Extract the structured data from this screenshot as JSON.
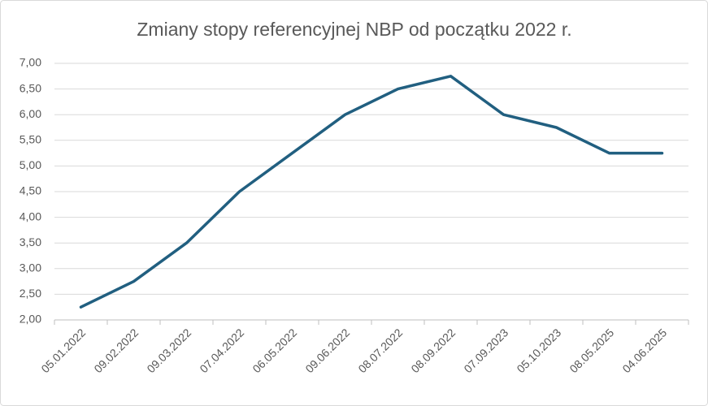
{
  "chart_data": {
    "type": "line",
    "title": "Zmiany stopy referencyjnej NBP od początku 2022 r.",
    "categories": [
      "05.01.2022",
      "09.02.2022",
      "09.03.2022",
      "07.04.2022",
      "06.05.2022",
      "09.06.2022",
      "08.07.2022",
      "08.09.2022",
      "07.09.2023",
      "05.10.2023",
      "08.05.2025",
      "04.06.2025"
    ],
    "values": [
      2.25,
      2.75,
      3.5,
      4.5,
      5.25,
      6.0,
      6.5,
      6.75,
      6.0,
      5.75,
      5.25,
      5.25
    ],
    "color": "#215f80",
    "ylim": [
      2,
      7
    ],
    "yticks": [
      {
        "value": 2,
        "label": "2,00"
      },
      {
        "value": 2.5,
        "label": "2,50"
      },
      {
        "value": 3,
        "label": "3,00"
      },
      {
        "value": 3.5,
        "label": "3,50"
      },
      {
        "value": 4,
        "label": "4,00"
      },
      {
        "value": 4.5,
        "label": "4,50"
      },
      {
        "value": 5,
        "label": "5,00"
      },
      {
        "value": 5.5,
        "label": "5,50"
      },
      {
        "value": 6,
        "label": "6,00"
      },
      {
        "value": 6.5,
        "label": "6,50"
      },
      {
        "value": 7,
        "label": "7,00"
      }
    ],
    "grid": true
  }
}
